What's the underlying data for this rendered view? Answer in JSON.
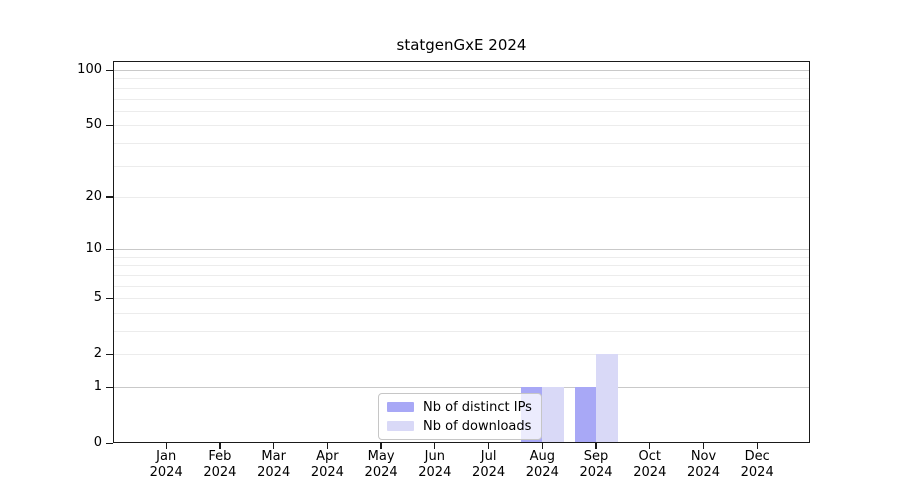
{
  "chart_data": {
    "type": "bar",
    "title": "statgenGxE 2024",
    "categories": [
      "Jan 2024",
      "Feb 2024",
      "Mar 2024",
      "Apr 2024",
      "May 2024",
      "Jun 2024",
      "Jul 2024",
      "Aug 2024",
      "Sep 2024",
      "Oct 2024",
      "Nov 2024",
      "Dec 2024"
    ],
    "series": [
      {
        "name": "Nb of distinct IPs",
        "color": "#a8a8f6",
        "values": [
          0,
          0,
          0,
          0,
          0,
          0,
          0,
          1,
          1,
          0,
          0,
          0
        ]
      },
      {
        "name": "Nb of downloads",
        "color": "#d9d9f7",
        "values": [
          0,
          0,
          0,
          0,
          0,
          0,
          0,
          1,
          2,
          0,
          0,
          0
        ]
      }
    ],
    "xlabel": "",
    "ylabel": "",
    "y_scale": "log1p",
    "ylim": [
      0,
      112
    ],
    "y_tick_values": [
      0,
      1,
      2,
      5,
      10,
      20,
      50,
      100
    ],
    "y_gridline_values": [
      1,
      2,
      3,
      4,
      5,
      6,
      7,
      8,
      9,
      10,
      20,
      30,
      40,
      50,
      60,
      70,
      80,
      90,
      100
    ],
    "y_major_gridline_values": [
      1,
      10,
      100
    ],
    "grid": "horizontal",
    "legend": {
      "position": "lower-center-inside",
      "entries": [
        "Nb of distinct IPs",
        "Nb of downloads"
      ]
    }
  },
  "colors": {
    "background": "#ffffff",
    "spine": "#1a1a1a",
    "grid_minor": "#ececec",
    "grid_major": "#c9c9c9",
    "text": "#000000",
    "legend_border": "#c6c6c6",
    "bar_distinct_ips": "#a8a8f6",
    "bar_downloads": "#d9d9f7"
  }
}
